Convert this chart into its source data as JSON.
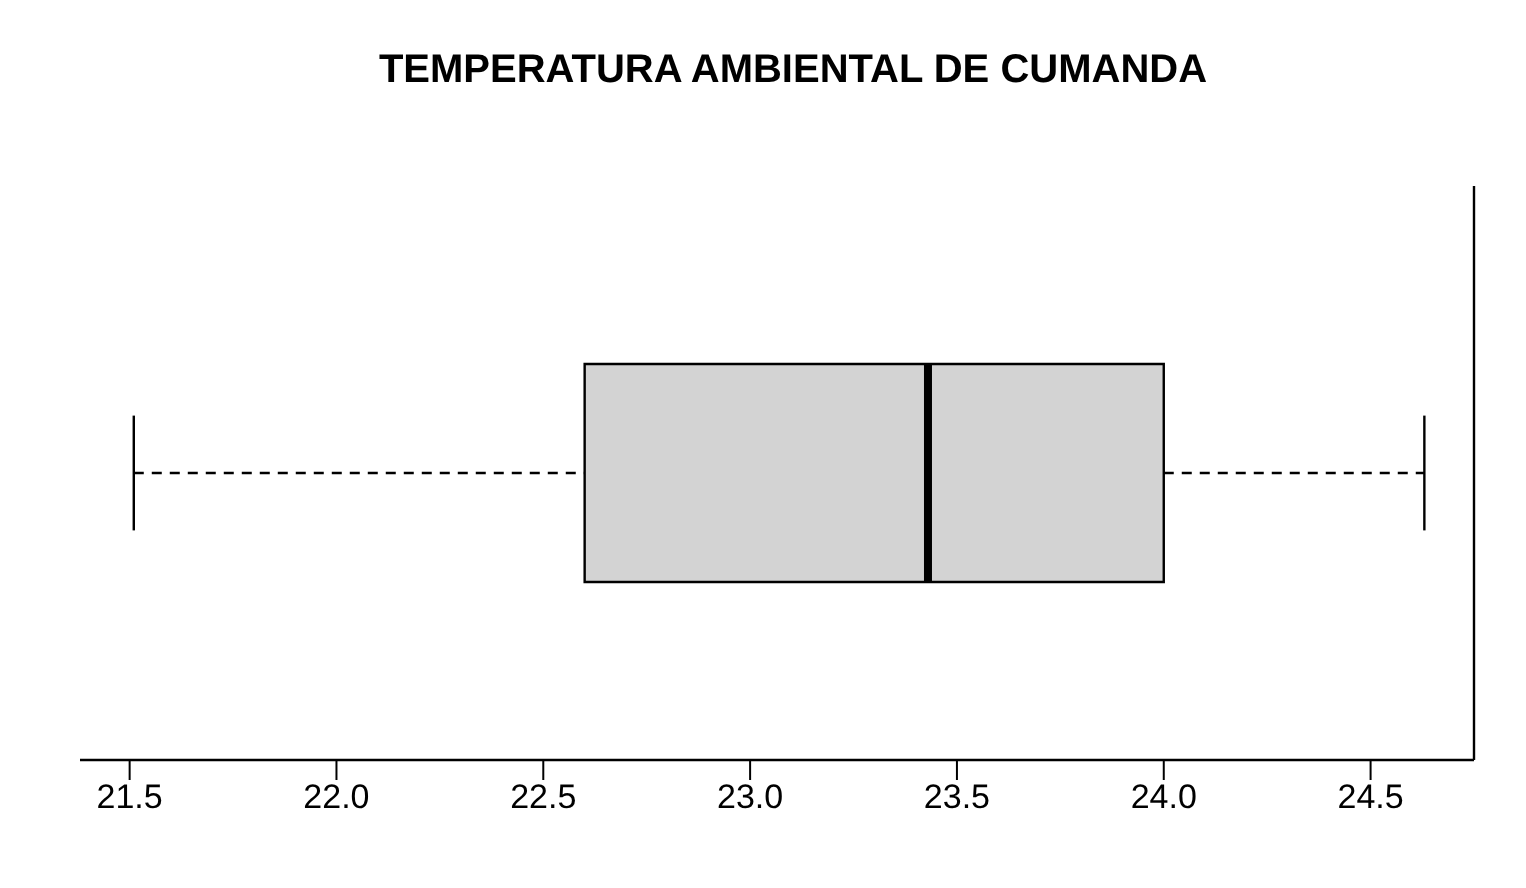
{
  "chart_data": {
    "type": "box",
    "title": "TEMPERATURA AMBIENTAL DE CUMANDA",
    "orientation": "horizontal",
    "categories": [
      null
    ],
    "color": "#d3d3d3",
    "boxes": [
      {
        "low": 21.51,
        "q1": 22.6,
        "median": 23.43,
        "q3": 24.0,
        "high": 24.63
      }
    ],
    "xlim": [
      21.38,
      24.75
    ],
    "xticks": [
      21.5,
      {
        "value": 22,
        "label": "22.0"
      },
      22.5,
      {
        "value": 23,
        "label": "23.0"
      },
      23.5,
      {
        "value": 24,
        "label": "24.0"
      },
      24.5
    ],
    "tick_labels": "x"
  }
}
